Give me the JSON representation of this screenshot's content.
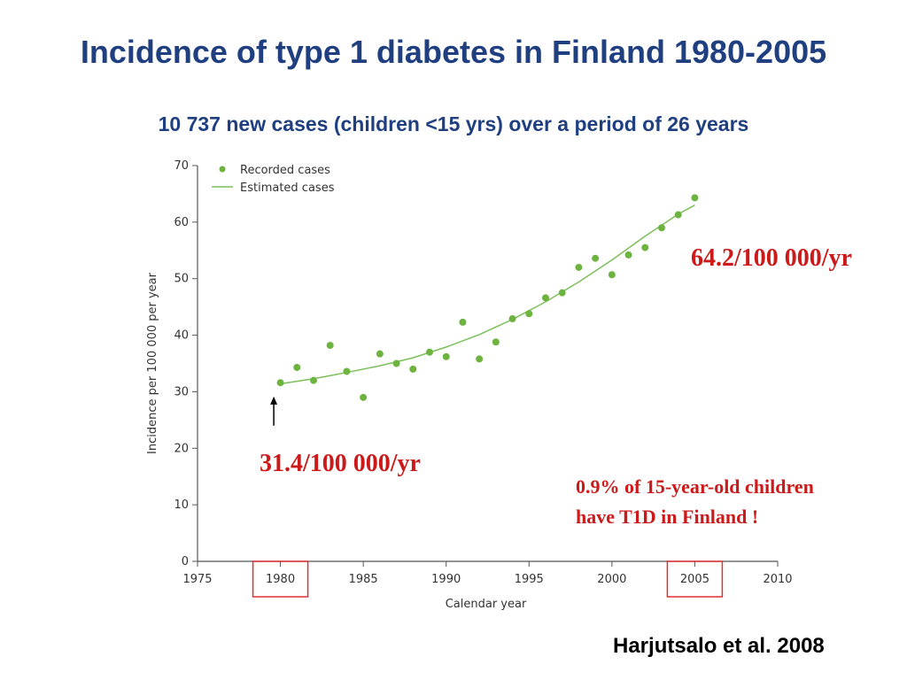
{
  "slide": {
    "title": "Incidence of type 1 diabetes in Finland 1980-2005",
    "subtitle": "10 737 new cases (children <15 yrs) over a period of 26 years",
    "annotation_start": "31.4/100 000/yr",
    "annotation_end": "64.2/100 000/yr",
    "note_line1": "0.9% of 15-year-old children",
    "note_line2": "have T1D in Finland !",
    "citation": "Harjutsalo et al. 2008"
  },
  "colors": {
    "title": "#1f3f80",
    "annotation": "#cc1a1a",
    "points": "#6db33f",
    "fit_line": "#7cbf5a",
    "highlight_box": "#e03030"
  },
  "chart_data": {
    "type": "scatter",
    "xlabel": "Calendar year",
    "ylabel": "Incidence per 100 000 per year",
    "xlim": [
      1975,
      2010
    ],
    "ylim": [
      0,
      70
    ],
    "xticks": [
      1975,
      1980,
      1985,
      1990,
      1995,
      2000,
      2005,
      2010
    ],
    "yticks": [
      0,
      10,
      20,
      30,
      40,
      50,
      60,
      70
    ],
    "highlighted_ticks": [
      1980,
      2005
    ],
    "legend": {
      "position": "top-left",
      "entries": [
        "Recorded cases",
        "Estimated cases"
      ]
    },
    "series": [
      {
        "name": "Recorded cases",
        "kind": "points",
        "x": [
          1980,
          1981,
          1982,
          1983,
          1984,
          1985,
          1986,
          1987,
          1988,
          1989,
          1990,
          1991,
          1992,
          1993,
          1994,
          1995,
          1996,
          1997,
          1998,
          1999,
          2000,
          2001,
          2002,
          2003,
          2004,
          2005
        ],
        "y": [
          31.6,
          34.3,
          32.0,
          38.2,
          33.6,
          29.0,
          36.7,
          35.0,
          34.0,
          37.0,
          36.2,
          42.3,
          35.8,
          38.8,
          42.9,
          43.8,
          46.6,
          47.5,
          52.0,
          53.6,
          50.7,
          54.2,
          55.5,
          59.0,
          61.3,
          64.3
        ]
      },
      {
        "name": "Estimated cases",
        "kind": "line",
        "x": [
          1980,
          1982,
          1984,
          1986,
          1988,
          1990,
          1992,
          1994,
          1996,
          1998,
          2000,
          2002,
          2004,
          2005
        ],
        "y": [
          31.4,
          32.3,
          33.4,
          34.6,
          36.0,
          37.9,
          40.1,
          42.8,
          45.9,
          49.4,
          53.3,
          57.5,
          61.4,
          63.0
        ]
      }
    ],
    "arrow_at": {
      "x": 1979.6,
      "y_from": 24,
      "y_to": 29
    }
  }
}
